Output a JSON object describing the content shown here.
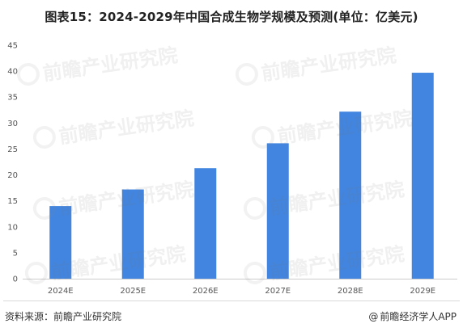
{
  "title": "图表15：2024-2029年中国合成生物学规模及预测(单位：亿美元)",
  "footer": {
    "source": "资料来源：前瞻产业研究院",
    "credit": "前瞻经济学人APP",
    "credit_symbol": "@"
  },
  "watermark": "前瞻产业研究院",
  "colors": {
    "bar": "#4285e0",
    "axis": "#cccccc"
  },
  "chart_data": {
    "type": "bar",
    "categories": [
      "2024E",
      "2025E",
      "2026E",
      "2027E",
      "2028E",
      "2029E"
    ],
    "values": [
      14.0,
      17.2,
      21.3,
      26.1,
      32.2,
      39.7
    ],
    "ylim": [
      0,
      45
    ],
    "yticks": [
      0,
      5,
      10,
      15,
      20,
      25,
      30,
      35,
      40,
      45
    ],
    "title": "",
    "xlabel": "",
    "ylabel": "",
    "grid": false
  }
}
